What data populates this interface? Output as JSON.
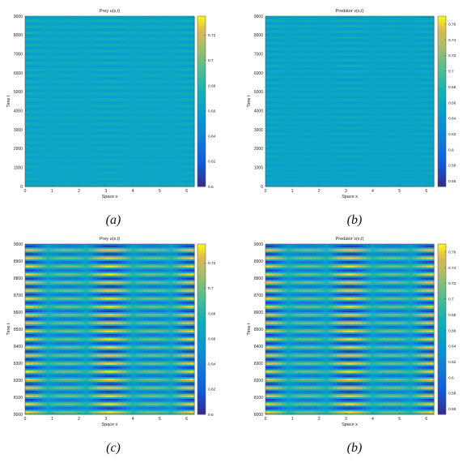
{
  "captions": [
    "(a)",
    "(b)",
    "(c)",
    "(b)"
  ],
  "chart_data": [
    {
      "type": "heatmap",
      "title": "Prey u(x,t)",
      "xlabel": "Space x",
      "ylabel": "Time t",
      "xlim": [
        0,
        6.28
      ],
      "ylim": [
        0,
        9000
      ],
      "xticks": [
        "0",
        "1",
        "2",
        "3",
        "4",
        "5",
        "6"
      ],
      "yticks": [
        "0",
        "1000",
        "2000",
        "3000",
        "4000",
        "5000",
        "6000",
        "7000",
        "8000",
        "9000"
      ],
      "colorbar": {
        "ticks": [
          "0.6",
          "0.62",
          "0.64",
          "0.66",
          "0.68",
          "0.7",
          "0.72"
        ],
        "min": 0.6,
        "max": 0.735
      },
      "colormap": "parula",
      "pattern": {
        "base": 0.665,
        "band_count": 28,
        "amplitude": 0.012,
        "growth": "increasing",
        "spatial_modes": 2
      }
    },
    {
      "type": "heatmap",
      "title": "Predator v(x,t)",
      "xlabel": "Space x",
      "ylabel": "Time t",
      "xlim": [
        0,
        6.28
      ],
      "ylim": [
        0,
        9000
      ],
      "xticks": [
        "0",
        "1",
        "2",
        "3",
        "4",
        "5",
        "6"
      ],
      "yticks": [
        "0",
        "1000",
        "2000",
        "3000",
        "4000",
        "5000",
        "6000",
        "7000",
        "8000",
        "9000"
      ],
      "colorbar": {
        "ticks": [
          "0.56",
          "0.58",
          "0.6",
          "0.62",
          "0.64",
          "0.66",
          "0.68",
          "0.7",
          "0.72",
          "0.74",
          "0.76"
        ],
        "min": 0.553,
        "max": 0.77
      },
      "colormap": "parula",
      "pattern": {
        "base": 0.655,
        "band_count": 30,
        "amplitude": 0.018,
        "growth": "increasing",
        "spatial_modes": 2
      }
    },
    {
      "type": "heatmap",
      "title": "Prey u(x,t)",
      "xlabel": "Space x",
      "ylabel": "Time t",
      "xlim": [
        0,
        6.28
      ],
      "ylim": [
        8000,
        9000
      ],
      "xticks": [
        "0",
        "1",
        "2",
        "3",
        "4",
        "5",
        "6"
      ],
      "yticks": [
        "8000",
        "8100",
        "8200",
        "8300",
        "8400",
        "8500",
        "8600",
        "8700",
        "8800",
        "8900",
        "9000"
      ],
      "colorbar": {
        "ticks": [
          "0.6",
          "0.62",
          "0.64",
          "0.66",
          "0.68",
          "0.7",
          "0.72"
        ],
        "min": 0.6,
        "max": 0.735
      },
      "colormap": "parula",
      "pattern": {
        "base": 0.667,
        "band_count": 21,
        "amplitude": 0.066,
        "growth": "constant",
        "spatial_modes": 2
      }
    },
    {
      "type": "heatmap",
      "title": "Predator v(x,t)",
      "xlabel": "Space x",
      "ylabel": "Time t",
      "xlim": [
        0,
        6.28
      ],
      "ylim": [
        8000,
        9000
      ],
      "xticks": [
        "0",
        "1",
        "2",
        "3",
        "4",
        "5",
        "6"
      ],
      "yticks": [
        "8000",
        "8100",
        "8200",
        "8300",
        "8400",
        "8500",
        "8600",
        "8700",
        "8800",
        "8900",
        "9000"
      ],
      "colorbar": {
        "ticks": [
          "0.56",
          "0.58",
          "0.6",
          "0.62",
          "0.64",
          "0.66",
          "0.68",
          "0.7",
          "0.72",
          "0.74",
          "0.76"
        ],
        "min": 0.553,
        "max": 0.77
      },
      "colormap": "parula",
      "pattern": {
        "base": 0.66,
        "band_count": 21,
        "amplitude": 0.105,
        "growth": "constant",
        "spatial_modes": 2
      }
    }
  ]
}
